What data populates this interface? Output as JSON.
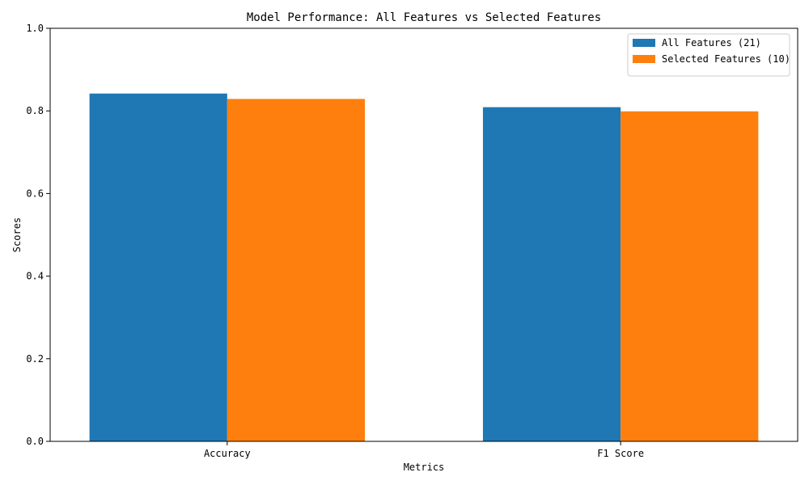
{
  "chart_data": {
    "type": "bar",
    "title": "Model Performance: All Features vs Selected Features",
    "xlabel": "Metrics",
    "ylabel": "Scores",
    "categories": [
      "Accuracy",
      "F1 Score"
    ],
    "series": [
      {
        "name": "All Features (21)",
        "values": [
          0.842,
          0.809
        ],
        "color": "#1f77b4"
      },
      {
        "name": "Selected Features (10)",
        "values": [
          0.829,
          0.799
        ],
        "color": "#ff7f0e"
      }
    ],
    "ylim": [
      0,
      1.0
    ],
    "yticks": [
      "0.0",
      "0.2",
      "0.4",
      "0.6",
      "0.8",
      "1.0"
    ],
    "grid": false,
    "legend": "top-right"
  }
}
